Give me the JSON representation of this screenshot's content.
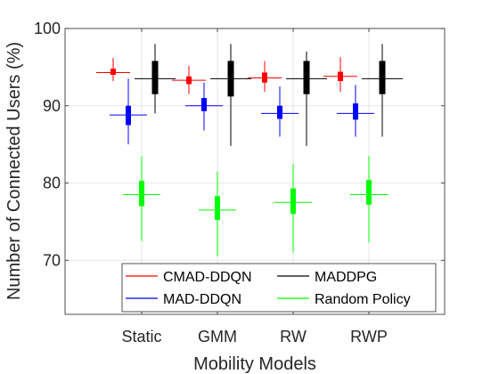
{
  "chart_data": {
    "type": "boxplot",
    "categories": [
      "Static",
      "GMM",
      "RW",
      "RWP"
    ],
    "xlabel": "Mobility Models",
    "ylabel": "Number of Connected Users (%)",
    "ylim": [
      63,
      100
    ],
    "yticks": [
      70,
      80,
      90,
      100
    ],
    "grid": true,
    "legend_position": "bottom",
    "series": [
      {
        "name": "CMAD-DDQN",
        "color": "#ff0000",
        "boxes": [
          {
            "whisker_low": 93.2,
            "q1": 94.0,
            "median": 94.3,
            "q3": 94.8,
            "whisker_high": 96.2
          },
          {
            "whisker_low": 91.5,
            "q1": 92.8,
            "median": 93.3,
            "q3": 93.8,
            "whisker_high": 95.2
          },
          {
            "whisker_low": 91.8,
            "q1": 93.0,
            "median": 93.6,
            "q3": 94.3,
            "whisker_high": 95.8
          },
          {
            "whisker_low": 91.8,
            "q1": 93.2,
            "median": 93.8,
            "q3": 94.4,
            "whisker_high": 96.3
          }
        ]
      },
      {
        "name": "MAD-DDQN",
        "color": "#0000ff",
        "boxes": [
          {
            "whisker_low": 85.0,
            "q1": 87.5,
            "median": 88.8,
            "q3": 90.0,
            "whisker_high": 93.5
          },
          {
            "whisker_low": 86.8,
            "q1": 89.3,
            "median": 90.0,
            "q3": 91.0,
            "whisker_high": 93.0
          },
          {
            "whisker_low": 86.0,
            "q1": 88.3,
            "median": 89.0,
            "q3": 90.0,
            "whisker_high": 92.5
          },
          {
            "whisker_low": 86.0,
            "q1": 88.2,
            "median": 89.0,
            "q3": 90.3,
            "whisker_high": 92.7
          }
        ]
      },
      {
        "name": "MADDPG",
        "color": "#000000",
        "boxes": [
          {
            "whisker_low": 89.0,
            "q1": 91.5,
            "median": 93.5,
            "q3": 95.8,
            "whisker_high": 98.0
          },
          {
            "whisker_low": 84.8,
            "q1": 91.2,
            "median": 93.5,
            "q3": 95.8,
            "whisker_high": 98.0
          },
          {
            "whisker_low": 84.8,
            "q1": 91.5,
            "median": 93.5,
            "q3": 95.8,
            "whisker_high": 97.0
          },
          {
            "whisker_low": 86.0,
            "q1": 91.5,
            "median": 93.5,
            "q3": 95.8,
            "whisker_high": 98.0
          }
        ]
      },
      {
        "name": "Random Policy",
        "color": "#00ff00",
        "boxes": [
          {
            "whisker_low": 72.5,
            "q1": 77.0,
            "median": 78.5,
            "q3": 80.3,
            "whisker_high": 83.5
          },
          {
            "whisker_low": 70.5,
            "q1": 75.2,
            "median": 76.5,
            "q3": 78.3,
            "whisker_high": 81.5
          },
          {
            "whisker_low": 71.0,
            "q1": 76.0,
            "median": 77.5,
            "q3": 79.3,
            "whisker_high": 82.5
          },
          {
            "whisker_low": 72.3,
            "q1": 77.2,
            "median": 78.5,
            "q3": 80.4,
            "whisker_high": 83.5
          }
        ]
      }
    ],
    "legend": {
      "columns": 2,
      "entries": [
        "CMAD-DDQN",
        "MADDPG",
        "MAD-DDQN",
        "Random Policy"
      ]
    }
  }
}
